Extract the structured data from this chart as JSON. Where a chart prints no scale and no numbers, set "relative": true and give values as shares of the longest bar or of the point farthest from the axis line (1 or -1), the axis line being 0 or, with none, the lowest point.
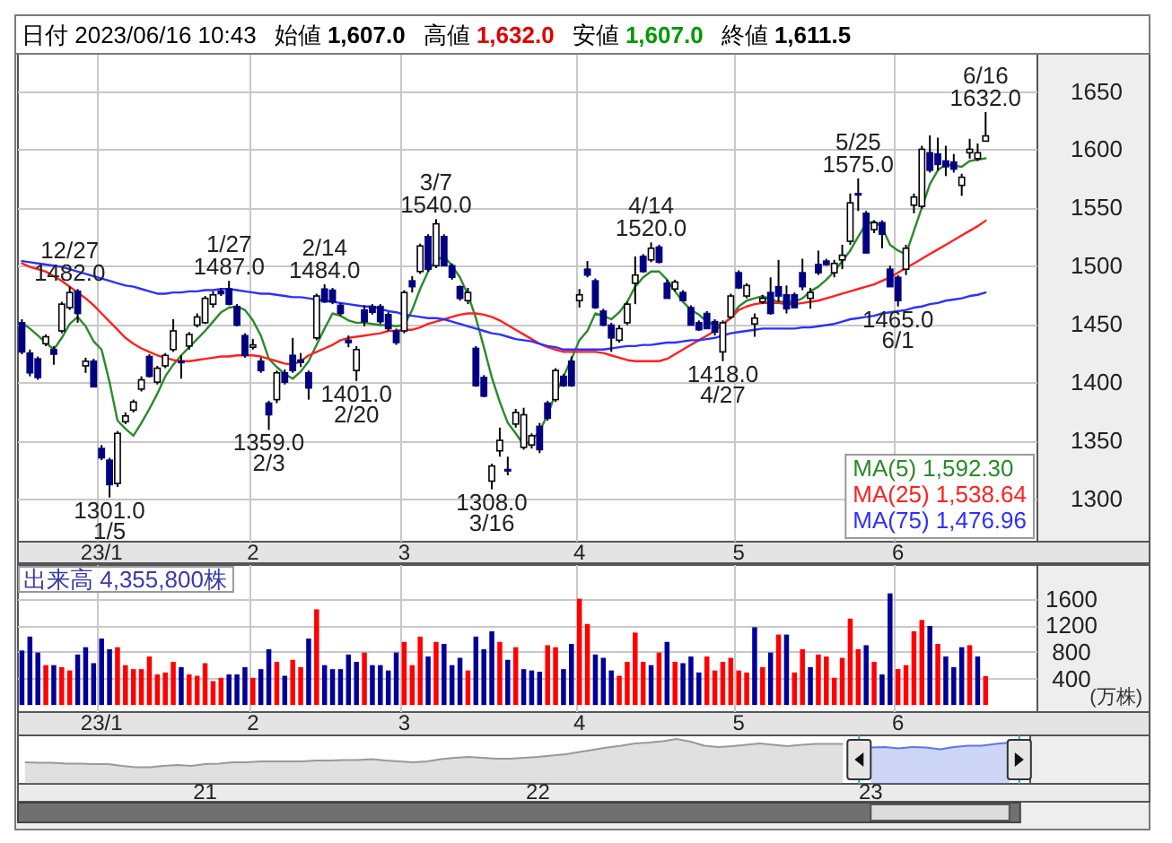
{
  "chart_data": [
    {
      "type": "candlestick",
      "title": "日付 2023/06/16 10:43",
      "annotations": [
        "始値 1,607.0",
        "高値 1,632.0",
        "安値 1,607.0",
        "終値 1,611.5",
        {
          "text": "12/27\n1482.0",
          "y": 1482
        },
        {
          "text": "1301.0\n1/5",
          "y": 1301
        },
        {
          "text": "1/27\n1487.0",
          "y": 1487
        },
        {
          "text": "1359.0\n2/3",
          "y": 1359
        },
        {
          "text": "2/14\n1484.0",
          "y": 1484
        },
        {
          "text": "1401.0\n2/20",
          "y": 1401
        },
        {
          "text": "3/7\n1540.0",
          "y": 1540
        },
        {
          "text": "1308.0\n3/16",
          "y": 1308
        },
        {
          "text": "4/14\n1520.0",
          "y": 1520
        },
        {
          "text": "1418.0\n4/27",
          "y": 1418
        },
        {
          "text": "5/25\n1575.0",
          "y": 1575
        },
        {
          "text": "1465.0\n6/1",
          "y": 1465
        },
        {
          "text": "6/16\n1632.0",
          "y": 1632
        }
      ],
      "categories": [
        null,
        null,
        null,
        null,
        null,
        null,
        null,
        null,
        null,
        null,
        "23/1",
        null,
        null,
        null,
        null,
        null,
        null,
        null,
        null,
        null,
        null,
        null,
        null,
        null,
        null,
        null,
        null,
        null,
        null,
        "2",
        null,
        null,
        null,
        null,
        null,
        null,
        null,
        null,
        null,
        null,
        null,
        null,
        null,
        null,
        null,
        null,
        null,
        null,
        "3",
        null,
        null,
        null,
        null,
        null,
        null,
        null,
        null,
        null,
        null,
        null,
        null,
        null,
        null,
        null,
        null,
        null,
        null,
        null,
        null,
        null,
        "4",
        null,
        null,
        null,
        null,
        null,
        null,
        null,
        null,
        null,
        null,
        null,
        null,
        null,
        null,
        null,
        null,
        null,
        null,
        null,
        "5",
        null,
        null,
        null,
        null,
        null,
        null,
        null,
        null,
        null,
        null,
        null,
        null,
        null,
        null,
        null,
        null,
        null,
        null,
        null,
        "6",
        null,
        null,
        null,
        null,
        null,
        null,
        null,
        null,
        null,
        null,
        null,
        null,
        null,
        null,
        null,
        null,
        null
      ],
      "ohlc": [
        [
          1451,
          1454,
          1424,
          1426
        ],
        [
          1425,
          1428,
          1405,
          1408
        ],
        [
          1420,
          1422,
          1402,
          1404
        ],
        [
          1433,
          1441,
          1431,
          1439
        ],
        [
          1428,
          1431,
          1415,
          1424
        ],
        [
          1444,
          1469,
          1442,
          1467
        ],
        [
          1464,
          1482,
          1462,
          1477
        ],
        [
          1478,
          1480,
          1451,
          1459
        ],
        [
          1414,
          1421,
          1408,
          1418
        ],
        [
          1418,
          1420,
          1396,
          1396
        ],
        [
          1343,
          1346,
          1333,
          1335
        ],
        [
          1333,
          1335,
          1301,
          1312
        ],
        [
          1313,
          1358,
          1310,
          1356
        ],
        [
          1366,
          1374,
          1364,
          1371
        ],
        [
          1376,
          1385,
          1374,
          1383
        ],
        [
          1394,
          1405,
          1392,
          1402
        ],
        [
          1422,
          1424,
          1404,
          1405
        ],
        [
          1400,
          1414,
          1398,
          1412
        ],
        [
          1414,
          1425,
          1412,
          1423
        ],
        [
          1428,
          1454,
          1426,
          1444
        ],
        [
          1418,
          1423,
          1403,
          1417
        ],
        [
          1431,
          1443,
          1428,
          1441
        ],
        [
          1449,
          1459,
          1447,
          1456
        ],
        [
          1451,
          1474,
          1450,
          1472
        ],
        [
          1467,
          1478,
          1464,
          1475
        ],
        [
          1478,
          1481,
          1474,
          1476
        ],
        [
          1480,
          1487,
          1466,
          1467
        ],
        [
          1465,
          1467,
          1448,
          1449
        ],
        [
          1440,
          1442,
          1421,
          1423
        ],
        [
          1430,
          1437,
          1428,
          1432
        ],
        [
          1418,
          1421,
          1408,
          1410
        ],
        [
          1382,
          1384,
          1359,
          1372
        ],
        [
          1385,
          1410,
          1382,
          1408
        ],
        [
          1408,
          1411,
          1398,
          1400
        ],
        [
          1423,
          1438,
          1408,
          1410
        ],
        [
          1419,
          1425,
          1413,
          1417
        ],
        [
          1408,
          1410,
          1385,
          1395
        ],
        [
          1438,
          1476,
          1436,
          1474
        ],
        [
          1480,
          1484,
          1468,
          1469
        ],
        [
          1479,
          1481,
          1467,
          1469
        ],
        [
          1466,
          1468,
          1457,
          1459
        ],
        [
          1436,
          1440,
          1430,
          1434
        ],
        [
          1410,
          1431,
          1401,
          1428
        ],
        [
          1462,
          1466,
          1448,
          1452
        ],
        [
          1465,
          1467,
          1458,
          1460
        ],
        [
          1465,
          1467,
          1450,
          1452
        ],
        [
          1458,
          1460,
          1444,
          1446
        ],
        [
          1444,
          1446,
          1432,
          1434
        ],
        [
          1444,
          1479,
          1442,
          1477
        ],
        [
          1487,
          1491,
          1477,
          1482
        ],
        [
          1495,
          1519,
          1493,
          1517
        ],
        [
          1525,
          1527,
          1495,
          1497
        ],
        [
          1500,
          1540,
          1498,
          1536
        ],
        [
          1525,
          1527,
          1500,
          1500
        ],
        [
          1500,
          1502,
          1488,
          1490
        ],
        [
          1482,
          1483,
          1470,
          1472
        ],
        [
          1470,
          1481,
          1467,
          1477
        ],
        [
          1429,
          1431,
          1396,
          1397
        ],
        [
          1404,
          1406,
          1387,
          1388
        ],
        [
          1315,
          1330,
          1308,
          1328
        ],
        [
          1341,
          1361,
          1336,
          1350
        ],
        [
          1325,
          1336,
          1320,
          1324
        ],
        [
          1364,
          1377,
          1361,
          1374
        ],
        [
          1344,
          1378,
          1342,
          1372
        ],
        [
          1346,
          1356,
          1343,
          1354
        ],
        [
          1362,
          1365,
          1339,
          1342
        ],
        [
          1382,
          1384,
          1367,
          1369
        ],
        [
          1385,
          1412,
          1383,
          1410
        ],
        [
          1405,
          1407,
          1396,
          1397
        ],
        [
          1418,
          1422,
          1396,
          1397
        ],
        [
          1470,
          1480,
          1464,
          1475
        ],
        [
          1497,
          1504,
          1490,
          1492
        ],
        [
          1487,
          1489,
          1463,
          1464
        ],
        [
          1461,
          1463,
          1448,
          1449
        ],
        [
          1449,
          1451,
          1426,
          1438
        ],
        [
          1436,
          1449,
          1434,
          1446
        ],
        [
          1451,
          1469,
          1449,
          1467
        ],
        [
          1485,
          1508,
          1467,
          1492
        ],
        [
          1508,
          1510,
          1494,
          1495
        ],
        [
          1505,
          1520,
          1503,
          1515
        ],
        [
          1516,
          1518,
          1502,
          1503
        ],
        [
          1485,
          1488,
          1472,
          1472
        ],
        [
          1480,
          1488,
          1478,
          1486
        ],
        [
          1477,
          1479,
          1470,
          1470
        ],
        [
          1464,
          1466,
          1449,
          1449
        ],
        [
          1451,
          1453,
          1444,
          1445
        ],
        [
          1459,
          1461,
          1446,
          1446
        ],
        [
          1452,
          1454,
          1440,
          1443
        ],
        [
          1426,
          1453,
          1418,
          1451
        ],
        [
          1456,
          1476,
          1454,
          1474
        ],
        [
          1494,
          1496,
          1480,
          1481
        ],
        [
          1474,
          1485,
          1472,
          1483
        ],
        [
          1450,
          1459,
          1439,
          1455
        ],
        [
          1469,
          1475,
          1467,
          1472
        ],
        [
          1477,
          1490,
          1458,
          1459
        ],
        [
          1482,
          1505,
          1469,
          1474
        ],
        [
          1475,
          1483,
          1459,
          1463
        ],
        [
          1475,
          1477,
          1464,
          1464
        ],
        [
          1494,
          1506,
          1479,
          1482
        ],
        [
          1472,
          1481,
          1463,
          1477
        ],
        [
          1501,
          1513,
          1492,
          1494
        ],
        [
          1504,
          1506,
          1500,
          1501
        ],
        [
          1494,
          1505,
          1490,
          1502
        ],
        [
          1505,
          1518,
          1497,
          1509
        ],
        [
          1521,
          1562,
          1518,
          1554
        ],
        [
          1562,
          1575,
          1547,
          1561
        ],
        [
          1545,
          1547,
          1511,
          1511
        ],
        [
          1531,
          1539,
          1528,
          1537
        ],
        [
          1537,
          1539,
          1515,
          1527
        ],
        [
          1497,
          1500,
          1482,
          1482
        ],
        [
          1490,
          1492,
          1465,
          1470
        ],
        [
          1497,
          1518,
          1492,
          1515
        ],
        [
          1552,
          1562,
          1545,
          1559
        ],
        [
          1551,
          1603,
          1549,
          1600
        ],
        [
          1597,
          1612,
          1580,
          1582
        ],
        [
          1596,
          1610,
          1582,
          1587
        ],
        [
          1590,
          1603,
          1577,
          1585
        ],
        [
          1589,
          1596,
          1580,
          1583
        ],
        [
          1569,
          1579,
          1560,
          1576
        ],
        [
          1597,
          1609,
          1592,
          1600
        ],
        [
          1592,
          1605,
          1590,
          1597
        ],
        [
          1607,
          1632,
          1607,
          1611.5
        ],
        null,
        null,
        null,
        null,
        null,
        null
      ],
      "colors": [
        "#000080",
        "#000080",
        "#000080",
        "#ffffff",
        "#000080",
        "#ffffff",
        "#ffffff",
        "#000080",
        "#ffffff",
        "#000080",
        "#000080",
        "#000080",
        "#ffffff",
        "#ffffff",
        "#ffffff",
        "#ffffff",
        "#000080",
        "#ffffff",
        "#ffffff",
        "#ffffff",
        "#000080",
        "#ffffff",
        "#ffffff",
        "#ffffff",
        "#ffffff",
        "#000080",
        "#000080",
        "#000080",
        "#000080",
        "#ffffff",
        "#000080",
        "#000080",
        "#ffffff",
        "#000080",
        "#000080",
        "#000080",
        "#000080",
        "#ffffff",
        "#000080",
        "#000080",
        "#000080",
        "#000080",
        "#ffffff",
        "#000080",
        "#000080",
        "#000080",
        "#000080",
        "#000080",
        "#ffffff",
        "#000080",
        "#ffffff",
        "#000080",
        "#ffffff",
        "#000080",
        "#000080",
        "#000080",
        "#ffffff",
        "#000080",
        "#000080",
        "#ffffff",
        "#ffffff",
        "#000080",
        "#ffffff",
        "#ffffff",
        "#ffffff",
        "#000080",
        "#000080",
        "#ffffff",
        "#000080",
        "#000080",
        "#ffffff",
        "#000080",
        "#000080",
        "#000080",
        "#000080",
        "#ffffff",
        "#ffffff",
        "#ffffff",
        "#000080",
        "#ffffff",
        "#000080",
        "#000080",
        "#ffffff",
        "#000080",
        "#000080",
        "#000080",
        "#000080",
        "#000080",
        "#ffffff",
        "#ffffff",
        "#000080",
        "#ffffff",
        "#ffffff",
        "#ffffff",
        "#000080",
        "#000080",
        "#000080",
        "#000080",
        "#000080",
        "#ffffff",
        "#000080",
        "#000080",
        "#ffffff",
        "#ffffff",
        "#ffffff",
        "#000080",
        "#000080",
        "#ffffff",
        "#000080",
        "#000080",
        "#000080",
        "#ffffff",
        "#ffffff",
        "#ffffff",
        "#000080",
        "#000080",
        "#000080",
        "#000080",
        "#ffffff",
        "#ffffff",
        "#ffffff",
        "#ffffff",
        null,
        null,
        null,
        null,
        null,
        null
      ],
      "series": [
        {
          "name": "MA(5) 1,592.30",
          "type": "line",
          "color": "#2a8a2a",
          "values": [
            1451,
            1446,
            1440,
            1434,
            1428,
            1438,
            1450,
            1456,
            1448,
            1435,
            1428,
            1400,
            1367,
            1360,
            1354,
            1365,
            1377,
            1390,
            1405,
            1415,
            1423,
            1430,
            1437,
            1444,
            1452,
            1460,
            1464,
            1465,
            1462,
            1453,
            1440,
            1420,
            1413,
            1407,
            1403,
            1409,
            1418,
            1432,
            1446,
            1459,
            1457,
            1453,
            1451,
            1451,
            1450,
            1449,
            1449,
            1448,
            1449,
            1462,
            1480,
            1495,
            1505,
            1508,
            1500,
            1490,
            1475,
            1455,
            1430,
            1404,
            1383,
            1365,
            1356,
            1346,
            1350,
            1358,
            1372,
            1390,
            1405,
            1420,
            1436,
            1444,
            1459,
            1457,
            1454,
            1460,
            1469,
            1482,
            1490,
            1495,
            1495,
            1488,
            1478,
            1469,
            1462,
            1458,
            1452,
            1449,
            1449,
            1456,
            1465,
            1470,
            1472,
            1474,
            1471,
            1469,
            1469,
            1469,
            1472,
            1478,
            1482,
            1488,
            1495,
            1504,
            1513,
            1525,
            1536,
            1538,
            1533,
            1518,
            1513,
            1510,
            1530,
            1550,
            1570,
            1582,
            1587,
            1586,
            1585,
            1590,
            1591,
            1592.3,
            null,
            null,
            null,
            null,
            null,
            null
          ]
        },
        {
          "name": "MA(25) 1,538.64",
          "type": "line",
          "color": "#ff2020",
          "values": [
            1502,
            1499,
            1497,
            1495,
            1491,
            1487,
            1482,
            1477,
            1472,
            1466,
            1459,
            1452,
            1445,
            1438,
            1433,
            1429,
            1426,
            1423,
            1421,
            1419,
            1418,
            1418,
            1419,
            1420,
            1421,
            1422,
            1422,
            1423,
            1423,
            1423,
            1422,
            1420,
            1418,
            1416,
            1415,
            1418,
            1423,
            1426,
            1429,
            1432,
            1436,
            1438,
            1439,
            1440,
            1441,
            1442,
            1444,
            1444,
            1445,
            1445,
            1447,
            1450,
            1452,
            1454,
            1456,
            1458,
            1459,
            1459,
            1458,
            1456,
            1453,
            1449,
            1445,
            1441,
            1437,
            1433,
            1430,
            1428,
            1426,
            1426,
            1426,
            1426,
            1426,
            1425,
            1423,
            1421,
            1419,
            1418,
            1418,
            1418,
            1418,
            1420,
            1424,
            1428,
            1432,
            1436,
            1440,
            1444,
            1450,
            1455,
            1462,
            1465,
            1467,
            1468,
            1468,
            1468,
            1467,
            1467,
            1468,
            1469,
            1470,
            1472,
            1474,
            1476,
            1478,
            1480,
            1482,
            1484,
            1487,
            1490,
            1494,
            1498,
            1502,
            1506,
            1510,
            1514,
            1518,
            1522,
            1526,
            1530,
            1534,
            1538.64,
            null,
            null,
            null,
            null,
            null,
            null
          ]
        },
        {
          "name": "MA(75) 1,476.96",
          "type": "line",
          "color": "#2f2fff",
          "values": [
            1504,
            1503,
            1502,
            1501,
            1500,
            1499,
            1497,
            1495,
            1493,
            1491,
            1489,
            1487,
            1485,
            1483,
            1482,
            1480,
            1478,
            1476,
            1476,
            1477,
            1477,
            1478,
            1478,
            1479,
            1479,
            1480,
            1480,
            1479,
            1478,
            1477,
            1476,
            1476,
            1475,
            1474,
            1473,
            1473,
            1472,
            1471,
            1470,
            1469,
            1468,
            1467,
            1466,
            1465,
            1465,
            1463,
            1461,
            1460,
            1458,
            1457,
            1456,
            1455,
            1455,
            1454,
            1452,
            1450,
            1448,
            1446,
            1444,
            1442,
            1441,
            1439,
            1437,
            1436,
            1435,
            1433,
            1431,
            1430,
            1428,
            1428,
            1428,
            1428,
            1428,
            1428,
            1429,
            1430,
            1431,
            1431,
            1432,
            1432,
            1433,
            1434,
            1434,
            1435,
            1436,
            1436,
            1437,
            1438,
            1440,
            1442,
            1443,
            1444,
            1445,
            1446,
            1446,
            1446,
            1446,
            1446,
            1447,
            1447,
            1448,
            1449,
            1450,
            1452,
            1454,
            1455,
            1456,
            1457,
            1459,
            1460,
            1461,
            1462,
            1464,
            1465,
            1467,
            1468,
            1470,
            1471,
            1472,
            1474,
            1475,
            1476.96,
            null,
            null,
            null,
            null,
            null,
            null
          ]
        }
      ],
      "ylim": [
        1263,
        1682
      ],
      "yticks": [
        1300,
        1350,
        1400,
        1450,
        1500,
        1550,
        1600,
        1650
      ],
      "grid": true,
      "legend": "bottom right"
    },
    {
      "type": "bar",
      "title": "出来高 4,355,800株",
      "ylabel": "(万株)",
      "categories": [
        null,
        null,
        null,
        null,
        null,
        null,
        null,
        null,
        null,
        null,
        "23/1",
        null,
        null,
        null,
        null,
        null,
        null,
        null,
        null,
        null,
        null,
        null,
        null,
        null,
        null,
        null,
        null,
        null,
        null,
        "2",
        null,
        null,
        null,
        null,
        null,
        null,
        null,
        null,
        null,
        null,
        null,
        null,
        null,
        null,
        null,
        null,
        null,
        null,
        "3",
        null,
        null,
        null,
        null,
        null,
        null,
        null,
        null,
        null,
        null,
        null,
        null,
        null,
        null,
        null,
        null,
        null,
        null,
        null,
        null,
        null,
        "4",
        null,
        null,
        null,
        null,
        null,
        null,
        null,
        null,
        null,
        null,
        null,
        null,
        null,
        null,
        null,
        null,
        null,
        null,
        null,
        "5",
        null,
        null,
        null,
        null,
        null,
        null,
        null,
        null,
        null,
        null,
        null,
        null,
        null,
        null,
        null,
        null,
        null,
        null,
        null,
        "6",
        null,
        null,
        null,
        null,
        null,
        null,
        null,
        null,
        null,
        null,
        null,
        null,
        null,
        null,
        null,
        null,
        null
      ],
      "values": [
        820,
        1030,
        790,
        600,
        600,
        570,
        520,
        760,
        870,
        630,
        1000,
        840,
        870,
        600,
        540,
        540,
        730,
        460,
        490,
        650,
        570,
        460,
        440,
        630,
        360,
        410,
        460,
        460,
        570,
        410,
        540,
        840,
        650,
        440,
        680,
        570,
        1000,
        1440,
        600,
        540,
        540,
        760,
        650,
        790,
        600,
        600,
        520,
        790,
        950,
        600,
        1030,
        730,
        950,
        920,
        600,
        710,
        520,
        1030,
        840,
        1110,
        950,
        680,
        870,
        540,
        520,
        500,
        900,
        870,
        540,
        920,
        1600,
        1220,
        760,
        710,
        520,
        440,
        650,
        1090,
        650,
        600,
        790,
        950,
        650,
        630,
        730,
        490,
        730,
        520,
        650,
        710,
        520,
        490,
        1170,
        570,
        790,
        1060,
        1060,
        490,
        840,
        570,
        760,
        730,
        410,
        710,
        1300,
        840,
        900,
        650,
        460,
        1680,
        540,
        600,
        1110,
        1280,
        1190,
        920,
        730,
        570,
        870,
        900,
        730,
        435.58,
        null,
        null,
        null,
        null,
        null,
        null
      ],
      "colors": [
        "#000099",
        "#000099",
        "#000099",
        "#ff0000",
        "#000099",
        "#ff0000",
        "#ff0000",
        "#000099",
        "#000099",
        "#000099",
        "#000099",
        "#000099",
        "#ff0000",
        "#ff0000",
        "#ff0000",
        "#ff0000",
        "#ff0000",
        "#ff0000",
        "#ff0000",
        "#ff0000",
        "#000099",
        "#ff0000",
        "#ff0000",
        "#ff0000",
        "#ff0000",
        "#ff0000",
        "#000099",
        "#000099",
        "#000099",
        "#ff0000",
        "#000099",
        "#000099",
        "#ff0000",
        "#000099",
        "#ff0000",
        "#ff0000",
        "#000099",
        "#ff0000",
        "#000099",
        "#000099",
        "#000099",
        "#000099",
        "#000099",
        "#ff0000",
        "#000099",
        "#000099",
        "#000099",
        "#000099",
        "#ff0000",
        "#ff0000",
        "#ff0000",
        "#000099",
        "#ff0000",
        "#000099",
        "#000099",
        "#000099",
        "#ff0000",
        "#000099",
        "#000099",
        "#000099",
        "#ff0000",
        "#000099",
        "#ff0000",
        "#000099",
        "#000099",
        "#000099",
        "#ff0000",
        "#ff0000",
        "#000099",
        "#000099",
        "#ff0000",
        "#ff0000",
        "#000099",
        "#000099",
        "#000099",
        "#ff0000",
        "#ff0000",
        "#ff0000",
        "#ff0000",
        "#000099",
        "#ff0000",
        "#000099",
        "#ff0000",
        "#000099",
        "#000099",
        "#000099",
        "#ff0000",
        "#ff0000",
        "#ff0000",
        "#ff0000",
        "#ff0000",
        "#ff0000",
        "#000099",
        "#ff0000",
        "#000099",
        "#ff0000",
        "#000099",
        "#ff0000",
        "#ff0000",
        "#000099",
        "#ff0000",
        "#ff0000",
        "#ff0000",
        "#ff0000",
        "#ff0000",
        "#ff0000",
        "#000099",
        "#ff0000",
        "#000099",
        "#000099",
        "#ff0000",
        "#ff0000",
        "#ff0000",
        "#ff0000",
        "#000099",
        "#ff0000",
        "#000099",
        "#000099",
        "#000099",
        "#ff0000",
        "#000099",
        "#ff0000",
        null,
        null,
        null,
        null,
        null,
        null
      ],
      "ylim": [
        -106,
        2107
      ],
      "yticks": [
        400,
        800,
        1200,
        1600
      ],
      "grid": true
    },
    {
      "type": "area",
      "relative": true,
      "categories": [
        null,
        null,
        null,
        null,
        null,
        null,
        null,
        null,
        null,
        null,
        null,
        null,
        null,
        "21",
        null,
        null,
        null,
        null,
        null,
        null,
        null,
        null,
        null,
        null,
        null,
        null,
        null,
        null,
        null,
        null,
        null,
        null,
        null,
        null,
        null,
        null,
        null,
        "22",
        null,
        null,
        null,
        null,
        null,
        null,
        null,
        null,
        null,
        null,
        null,
        null,
        null,
        null,
        null,
        null,
        null,
        null,
        null,
        null,
        null,
        null,
        null,
        "23",
        null,
        null,
        null,
        null,
        null,
        null,
        null,
        null,
        null,
        null,
        null
      ],
      "series": [
        {
          "color": "#999999",
          "values": [
            0.48,
            0.47,
            0.47,
            0.45,
            0.45,
            0.44,
            0.44,
            0.4,
            0.37,
            0.37,
            0.4,
            0.42,
            0.4,
            0.44,
            0.45,
            0.48,
            0.48,
            0.5,
            0.5,
            0.5,
            0.5,
            0.52,
            0.52,
            0.53,
            0.53,
            0.55,
            0.52,
            0.5,
            0.48,
            0.5,
            0.55,
            0.58,
            0.6,
            0.58,
            0.56,
            0.56,
            0.58,
            0.6,
            0.63,
            0.66,
            0.71,
            0.76,
            0.81,
            0.85,
            0.9,
            0.92,
            0.95,
            1,
            0.94,
            0.85,
            0.82,
            0.84,
            0.87,
            0.9,
            0.87,
            0.84,
            0.87,
            0.89,
            0.89,
            0.89,
            null,
            null,
            null,
            null,
            null,
            null,
            null,
            null,
            null,
            null,
            null,
            null,
            null
          ]
        },
        {
          "color": "#5a78e6",
          "values": [
            null,
            null,
            null,
            null,
            null,
            null,
            null,
            null,
            null,
            null,
            null,
            null,
            null,
            null,
            null,
            null,
            null,
            null,
            null,
            null,
            null,
            null,
            null,
            null,
            null,
            null,
            null,
            null,
            null,
            null,
            null,
            null,
            null,
            null,
            null,
            null,
            null,
            null,
            null,
            null,
            null,
            null,
            null,
            null,
            null,
            null,
            null,
            null,
            null,
            null,
            null,
            null,
            null,
            null,
            null,
            null,
            null,
            null,
            null,
            null,
            null,
            0.81,
            0.82,
            0.79,
            0.82,
            0.81,
            0.77,
            0.82,
            0.85,
            0.85,
            0.89,
            0.92,
            null
          ]
        }
      ]
    }
  ]
}
